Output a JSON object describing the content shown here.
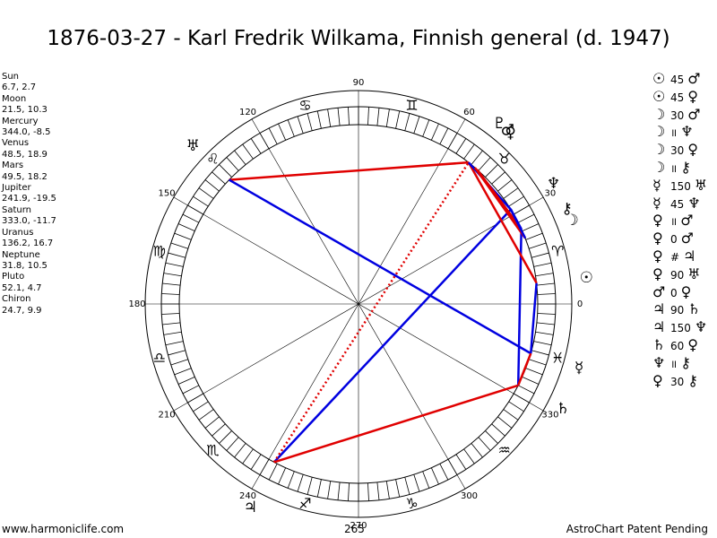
{
  "title": "1876-03-27 - Karl Fredrik Wilkama, Finnish general (d. 1947)",
  "planets": [
    {
      "name": "Sun",
      "symbol": "☉",
      "values": "6.7, 2.7",
      "lon": 6.7
    },
    {
      "name": "Moon",
      "symbol": "☽",
      "values": "21.5, 10.3",
      "lon": 21.5
    },
    {
      "name": "Mercury",
      "symbol": "☿",
      "values": "344.0, -8.5",
      "lon": 344.0
    },
    {
      "name": "Venus",
      "symbol": "♀",
      "values": "48.5, 18.9",
      "lon": 48.5
    },
    {
      "name": "Mars",
      "symbol": "♂",
      "values": "49.5, 18.2",
      "lon": 49.5
    },
    {
      "name": "Jupiter",
      "symbol": "♃",
      "values": "241.9, -19.5",
      "lon": 241.9
    },
    {
      "name": "Saturn",
      "symbol": "♄",
      "values": "333.0, -11.7",
      "lon": 333.0
    },
    {
      "name": "Uranus",
      "symbol": "♅",
      "values": "136.2, 16.7",
      "lon": 136.2
    },
    {
      "name": "Neptune",
      "symbol": "♆",
      "values": "31.8, 10.5",
      "lon": 31.8
    },
    {
      "name": "Pluto",
      "symbol": "♇",
      "values": "52.1, 4.7",
      "lon": 52.1
    },
    {
      "name": "Chiron",
      "symbol": "⚷",
      "values": "24.7, 9.9",
      "lon": 24.7
    }
  ],
  "aspects": [
    {
      "p1": "☉",
      "symbol": "",
      "angle": "45",
      "p2": "♂"
    },
    {
      "p1": "☉",
      "symbol": "",
      "angle": "45",
      "p2": "♀"
    },
    {
      "p1": "☽",
      "symbol": "",
      "angle": "30",
      "p2": "♂"
    },
    {
      "p1": "☽",
      "symbol": "॥",
      "angle": "",
      "p2": "♆"
    },
    {
      "p1": "☽",
      "symbol": "",
      "angle": "30",
      "p2": "♀"
    },
    {
      "p1": "☽",
      "symbol": "॥",
      "angle": "",
      "p2": "⚷"
    },
    {
      "p1": "☿",
      "symbol": "",
      "angle": "150",
      "p2": "♅"
    },
    {
      "p1": "☿",
      "symbol": "",
      "angle": "45",
      "p2": "♆"
    },
    {
      "p1": "♀",
      "symbol": "॥",
      "angle": "",
      "p2": "♂"
    },
    {
      "p1": "♀",
      "symbol": "",
      "angle": "0",
      "p2": "♂"
    },
    {
      "p1": "♀",
      "symbol": "#",
      "angle": "",
      "p2": "♃"
    },
    {
      "p1": "♀",
      "symbol": "",
      "angle": "90",
      "p2": "♅"
    },
    {
      "p1": "♂",
      "symbol": "",
      "angle": "0",
      "p2": "♀"
    },
    {
      "p1": "♃",
      "symbol": "",
      "angle": "90",
      "p2": "♄"
    },
    {
      "p1": "♃",
      "symbol": "",
      "angle": "150",
      "p2": "♆"
    },
    {
      "p1": "♄",
      "symbol": "",
      "angle": "60",
      "p2": "♀"
    },
    {
      "p1": "♆",
      "symbol": "॥",
      "angle": "",
      "p2": "⚷"
    },
    {
      "p1": "♀",
      "symbol": "",
      "angle": "30",
      "p2": "⚷"
    }
  ],
  "degree_labels": [
    "0",
    "30",
    "60",
    "90",
    "120",
    "150",
    "180",
    "210",
    "240",
    "270",
    "300",
    "330"
  ],
  "sign_glyphs": [
    "♈",
    "♉",
    "♊",
    "♋",
    "♌",
    "♍",
    "♎",
    "♏",
    "♐",
    "♑",
    "♒",
    "♓"
  ],
  "ascendant_label": "265",
  "aspect_lines": [
    {
      "from": "Uranus",
      "to": "Pluto",
      "color": "#e00000",
      "style": "solid"
    },
    {
      "from": "Uranus",
      "to": "Mercury",
      "color": "#0000e0",
      "style": "solid"
    },
    {
      "from": "Jupiter",
      "to": "Neptune",
      "color": "#0000e0",
      "style": "solid"
    },
    {
      "from": "Jupiter",
      "to": "Saturn",
      "color": "#e00000",
      "style": "solid"
    },
    {
      "from": "Jupiter",
      "to": "Pluto",
      "color": "#e00000",
      "style": "dotted"
    },
    {
      "from": "Saturn",
      "to": "Chiron",
      "color": "#0000e0",
      "style": "solid"
    },
    {
      "from": "Mercury",
      "to": "Sun",
      "color": "#0000e0",
      "style": "solid"
    },
    {
      "from": "Pluto",
      "to": "Sun",
      "color": "#e00000",
      "style": "solid"
    },
    {
      "from": "Pluto",
      "to": "Neptune",
      "color": "#0000e0",
      "style": "solid"
    },
    {
      "from": "Mars",
      "to": "Moon",
      "color": "#e00000",
      "style": "solid"
    },
    {
      "from": "Venus",
      "to": "Chiron",
      "color": "#e00000",
      "style": "solid"
    },
    {
      "from": "Neptune",
      "to": "Chiron",
      "color": "#0000e0",
      "style": "solid"
    },
    {
      "from": "Neptune",
      "to": "Moon",
      "color": "#0000e0",
      "style": "solid"
    },
    {
      "from": "Mercury",
      "to": "Saturn",
      "color": "#e00000",
      "style": "solid"
    }
  ],
  "footer": {
    "left": "www.harmoniclife.com",
    "right": "AstroChart Patent Pending"
  }
}
